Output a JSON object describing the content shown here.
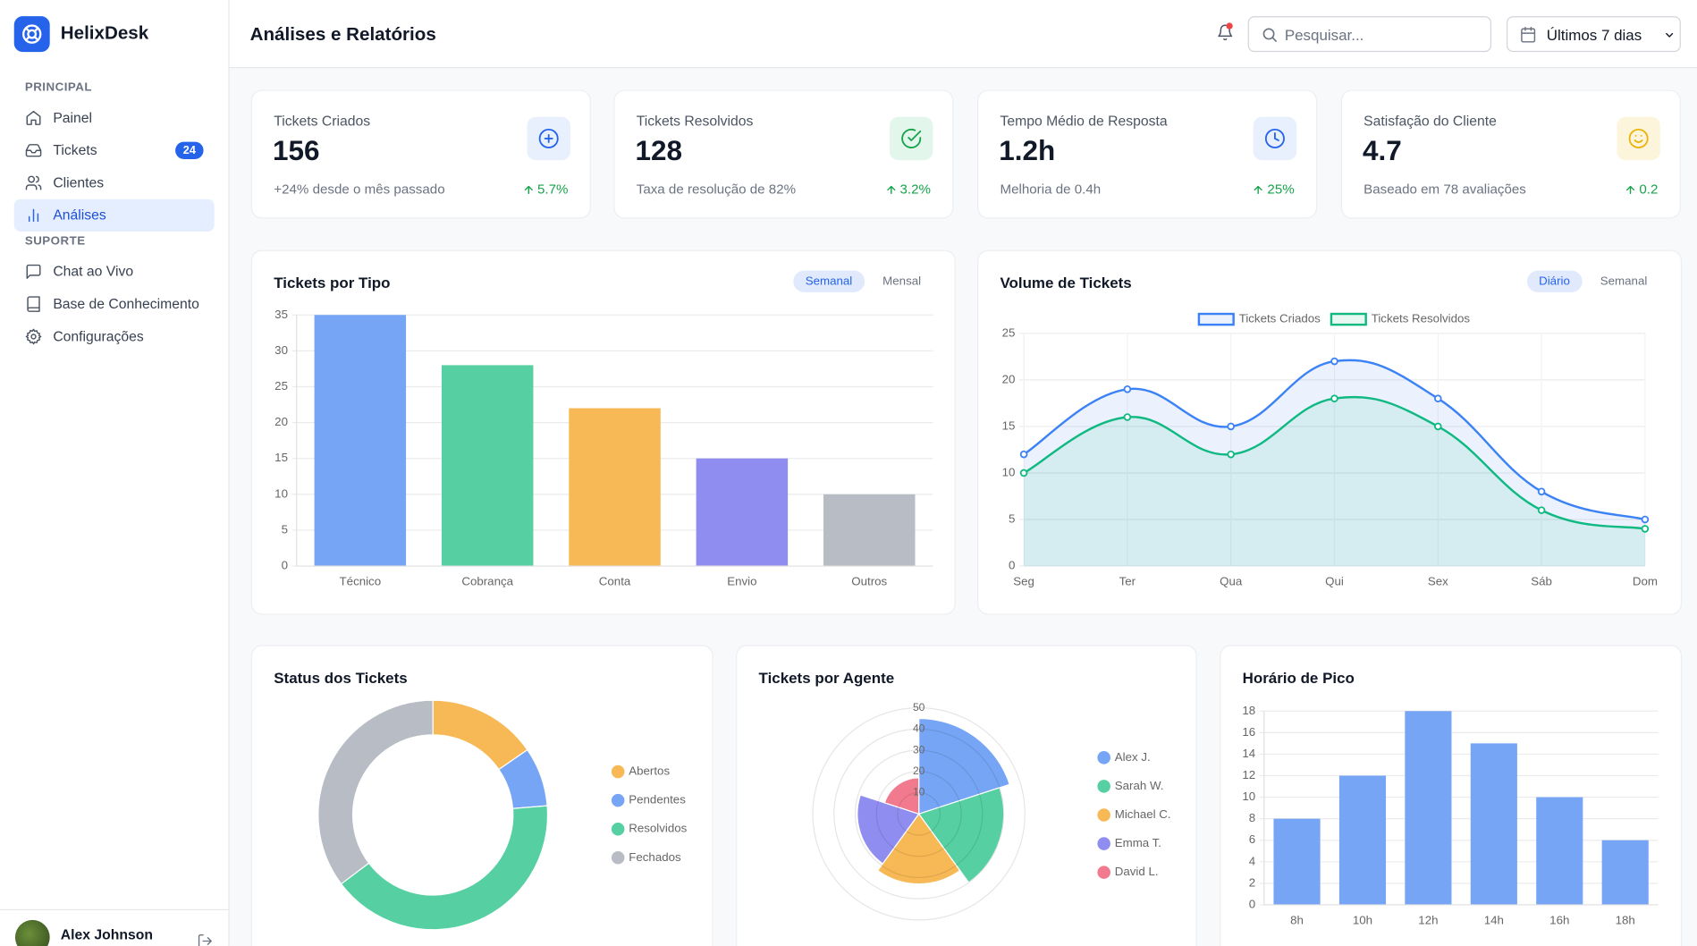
{
  "sidebar": {
    "brand": "HelixDesk",
    "sections": [
      {
        "title": "PRINCIPAL",
        "items": [
          {
            "label": "Painel"
          },
          {
            "label": "Tickets",
            "badge": 24
          },
          {
            "label": "Clientes"
          },
          {
            "label": "Análises",
            "active": true
          }
        ]
      },
      {
        "title": "SUPORTE",
        "items": [
          {
            "label": "Chat ao Vivo"
          },
          {
            "label": "Base de Conhecimento"
          },
          {
            "label": "Configurações"
          }
        ]
      }
    ],
    "user": "Alex Johnson"
  },
  "header": {
    "title": "Análises e Relatórios",
    "search_placeholder": "Pesquisar...",
    "date_range": "Últimos 7 dias"
  },
  "kpis": [
    {
      "label": "Tickets Criados",
      "value": 156,
      "note": "+24% desde o mês passado",
      "change": "5.7%"
    },
    {
      "label": "Tickets Resolvidos",
      "value": 128,
      "note": "Taxa de resolução de 82%",
      "change": "3.2%"
    },
    {
      "label": "Tempo Médio de Resposta",
      "value": "1.2h",
      "note": "Melhoria de 0.4h",
      "change": "25%"
    },
    {
      "label": "Satisfação do Cliente",
      "value": 4.7,
      "note": "Baseado em 78 avaliações",
      "change": "0.2"
    }
  ],
  "chart_data": [
    {
      "type": "bar",
      "title": "Tickets por Tipo",
      "toggles": [
        {
          "label": "Semanal",
          "active": true
        },
        {
          "label": "Mensal"
        }
      ],
      "categories": [
        "Técnico",
        "Cobrança",
        "Conta",
        "Envio",
        "Outros"
      ],
      "values": [
        35,
        28,
        22,
        15,
        10
      ],
      "colors": [
        "#76a5f5",
        "#56cfa3",
        "#f7b955",
        "#8f8ef0",
        "#b8bcc5"
      ],
      "ylim": [
        0,
        35
      ],
      "yticks": [
        0,
        5,
        10,
        15,
        20,
        25,
        30,
        35
      ],
      "grid": true
    },
    {
      "type": "line",
      "title": "Volume de Tickets",
      "toggles": [
        {
          "label": "Diário",
          "active": true
        },
        {
          "label": "Semanal"
        }
      ],
      "categories": [
        "Seg",
        "Ter",
        "Qua",
        "Qui",
        "Sex",
        "Sáb",
        "Dom"
      ],
      "series": [
        {
          "name": "Tickets Criados",
          "color": "#3b82f6",
          "values": [
            12,
            19,
            15,
            22,
            18,
            8,
            5
          ]
        },
        {
          "name": "Tickets Resolvidos",
          "color": "#10b981",
          "values": [
            10,
            16,
            12,
            18,
            15,
            6,
            4
          ]
        }
      ],
      "ylim": [
        0,
        25
      ],
      "yticks": [
        0,
        5,
        10,
        15,
        20,
        25
      ],
      "grid": true,
      "fill": true,
      "smooth": true,
      "legend": "top"
    },
    {
      "type": "doughnut",
      "title": "Status dos Tickets",
      "categories": [
        "Abertos",
        "Pendentes",
        "Resolvidos",
        "Fechados"
      ],
      "values": [
        24,
        13,
        64,
        55
      ],
      "colors": [
        "#f7b955",
        "#76a5f5",
        "#56cfa3",
        "#b8bcc5"
      ],
      "legend": "right"
    },
    {
      "type": "polarArea",
      "title": "Tickets por Agente",
      "categories": [
        "Alex J.",
        "Sarah W.",
        "Michael C.",
        "Emma T.",
        "David L."
      ],
      "values": [
        45,
        40,
        33,
        29,
        17
      ],
      "colors": [
        "#76a5f5",
        "#56cfa3",
        "#f7b955",
        "#8f8ef0",
        "#f27a8f"
      ],
      "rlim": [
        0,
        50
      ],
      "rticks": [
        10,
        20,
        30,
        40,
        50
      ],
      "legend": "right"
    },
    {
      "type": "bar",
      "title": "Horário de Pico",
      "categories": [
        "8h",
        "10h",
        "12h",
        "14h",
        "16h",
        "18h"
      ],
      "values": [
        8,
        12,
        18,
        15,
        10,
        6
      ],
      "color": "#76a5f5",
      "ylim": [
        0,
        18
      ],
      "yticks": [
        0,
        2,
        4,
        6,
        8,
        10,
        12,
        14,
        16,
        18
      ],
      "grid": true
    }
  ]
}
